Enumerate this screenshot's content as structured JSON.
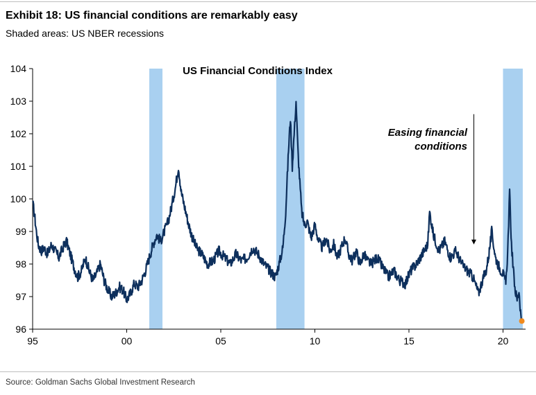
{
  "exhibit": {
    "title": "Exhibit 18: US financial conditions are remarkably easy",
    "subtitle": "Shaded areas: US NBER recessions",
    "source": "Source: Goldman Sachs Global Investment Research"
  },
  "chart_data": {
    "type": "line",
    "title": "US Financial Conditions Index",
    "xlabel": "",
    "ylabel": "",
    "xlim": [
      1995.0,
      2021.2
    ],
    "ylim": [
      96,
      104
    ],
    "x_tick_values": [
      1995,
      2000,
      2005,
      2010,
      2015,
      2020
    ],
    "x_tick_labels": [
      "95",
      "00",
      "05",
      "10",
      "15",
      "20"
    ],
    "y_ticks": [
      96,
      97,
      98,
      99,
      100,
      101,
      102,
      103,
      104
    ],
    "grid": false,
    "recessions": [
      {
        "start": 2001.2,
        "end": 2001.9
      },
      {
        "start": 2007.95,
        "end": 2009.45
      },
      {
        "start": 2020.0,
        "end": 2021.05
      }
    ],
    "annotation": {
      "text_line1": "Easing financial",
      "text_line2": "conditions",
      "arrow_x": 2018.45,
      "arrow_from": 102.6,
      "arrow_to": 98.6
    },
    "last_point": {
      "x": 2021.0,
      "y": 96.25
    },
    "series": [
      {
        "name": "US Financial Conditions Index",
        "color": "#0d2f5c",
        "x": [
          1995.0,
          1995.1,
          1995.2,
          1995.3,
          1995.45,
          1995.6,
          1995.8,
          1996.0,
          1996.2,
          1996.4,
          1996.6,
          1996.8,
          1997.0,
          1997.2,
          1997.4,
          1997.6,
          1997.8,
          1998.0,
          1998.2,
          1998.4,
          1998.6,
          1998.8,
          1999.0,
          1999.2,
          1999.4,
          1999.6,
          1999.8,
          2000.0,
          2000.2,
          2000.4,
          2000.6,
          2000.8,
          2001.0,
          2001.2,
          2001.4,
          2001.6,
          2001.8,
          2002.0,
          2002.2,
          2002.4,
          2002.6,
          2002.75,
          2002.9,
          2003.1,
          2003.3,
          2003.5,
          2003.7,
          2004.0,
          2004.3,
          2004.6,
          2004.9,
          2005.2,
          2005.5,
          2005.8,
          2006.1,
          2006.4,
          2006.7,
          2007.0,
          2007.3,
          2007.6,
          2007.9,
          2008.1,
          2008.3,
          2008.45,
          2008.6,
          2008.7,
          2008.8,
          2008.9,
          2009.0,
          2009.1,
          2009.2,
          2009.3,
          2009.45,
          2009.6,
          2009.8,
          2010.0,
          2010.2,
          2010.4,
          2010.6,
          2010.8,
          2011.0,
          2011.2,
          2011.4,
          2011.6,
          2011.8,
          2012.0,
          2012.2,
          2012.4,
          2012.6,
          2012.8,
          2013.0,
          2013.3,
          2013.6,
          2013.9,
          2014.2,
          2014.5,
          2014.8,
          2015.1,
          2015.4,
          2015.7,
          2016.0,
          2016.1,
          2016.3,
          2016.6,
          2016.9,
          2017.2,
          2017.5,
          2017.8,
          2018.1,
          2018.4,
          2018.7,
          2018.9,
          2019.1,
          2019.25,
          2019.4,
          2019.6,
          2019.8,
          2020.0,
          2020.15,
          2020.25,
          2020.35,
          2020.45,
          2020.55,
          2020.65,
          2020.75,
          2020.85,
          2020.95,
          2021.0
        ],
        "y": [
          99.9,
          99.5,
          99.0,
          98.6,
          98.4,
          98.5,
          98.3,
          98.6,
          98.4,
          98.2,
          98.5,
          98.7,
          98.3,
          97.9,
          97.6,
          97.8,
          98.2,
          97.8,
          97.5,
          97.7,
          98.0,
          97.5,
          97.2,
          97.0,
          97.1,
          97.3,
          97.2,
          96.9,
          97.1,
          97.4,
          97.3,
          97.5,
          97.8,
          98.2,
          98.6,
          98.9,
          98.7,
          99.0,
          99.3,
          99.8,
          100.4,
          101.0,
          100.2,
          99.7,
          99.2,
          98.8,
          98.5,
          98.3,
          98.0,
          98.1,
          98.4,
          98.2,
          98.0,
          98.3,
          98.1,
          98.2,
          98.5,
          98.3,
          98.0,
          97.8,
          97.6,
          98.0,
          98.5,
          99.6,
          101.5,
          102.5,
          101.0,
          102.0,
          103.0,
          101.5,
          100.5,
          99.6,
          99.2,
          99.3,
          98.8,
          99.2,
          98.7,
          98.5,
          98.8,
          98.4,
          98.6,
          98.2,
          98.5,
          98.8,
          98.3,
          98.1,
          98.4,
          98.0,
          98.3,
          98.1,
          98.0,
          98.2,
          97.9,
          97.6,
          97.8,
          97.5,
          97.4,
          97.8,
          98.0,
          98.3,
          98.6,
          99.6,
          98.9,
          98.4,
          98.7,
          98.2,
          98.4,
          98.0,
          97.8,
          97.6,
          97.1,
          97.5,
          97.8,
          98.3,
          99.0,
          98.2,
          97.9,
          97.7,
          97.4,
          98.4,
          100.2,
          98.6,
          97.8,
          97.2,
          96.9,
          97.2,
          96.4,
          96.25
        ]
      }
    ]
  }
}
